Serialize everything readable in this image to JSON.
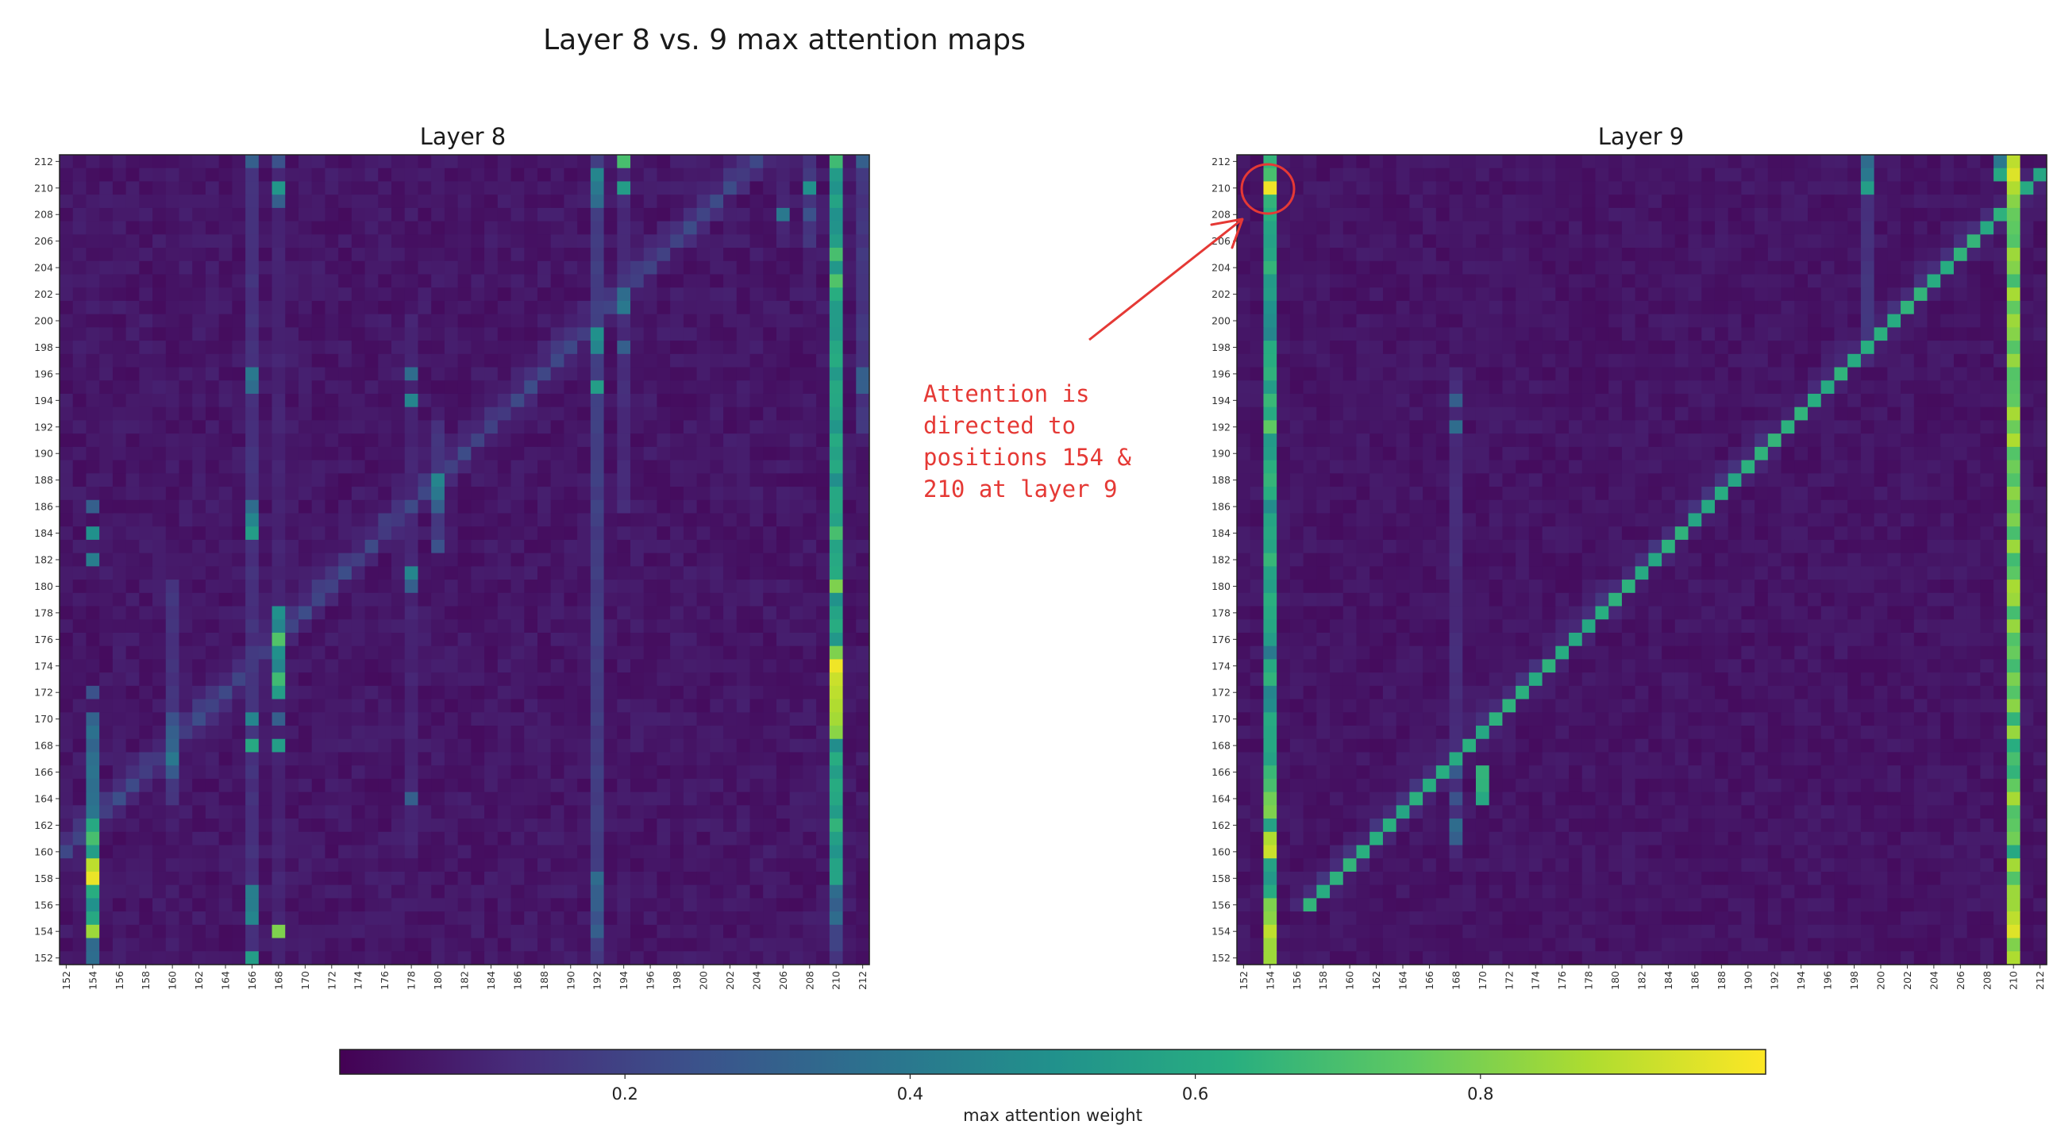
{
  "figure": {
    "title": "Layer 8 vs. 9 max attention maps"
  },
  "annotation": {
    "text": "Attention is\ndirected to\npositions 154 &\n210 at layer 9",
    "color": "#e53935"
  },
  "colormap": "viridis",
  "colorbar": {
    "label": "max attention weight",
    "range": [
      0.0,
      1.0
    ],
    "ticks": [
      0.2,
      0.4,
      0.6,
      0.8
    ],
    "tick_labels": [
      "0.2",
      "0.4",
      "0.6",
      "0.8"
    ]
  },
  "chart_data": [
    {
      "type": "heatmap",
      "title": "Layer 8",
      "xlabel": "",
      "ylabel": "",
      "positions": {
        "start": 152,
        "end": 212
      },
      "x_tick_labels": [
        "152",
        "154",
        "156",
        "158",
        "160",
        "162",
        "164",
        "166",
        "168",
        "170",
        "172",
        "174",
        "176",
        "178",
        "180",
        "182",
        "184",
        "186",
        "188",
        "190",
        "192",
        "194",
        "196",
        "198",
        "200",
        "202",
        "204",
        "206",
        "208",
        "210",
        "212"
      ],
      "y_tick_labels": [
        "212",
        "210",
        "208",
        "206",
        "204",
        "202",
        "200",
        "198",
        "196",
        "194",
        "192",
        "190",
        "188",
        "186",
        "184",
        "182",
        "180",
        "178",
        "176",
        "174",
        "172",
        "170",
        "168",
        "166",
        "164",
        "162",
        "160",
        "158",
        "156",
        "154",
        "152"
      ],
      "background_weight": 0.03,
      "columns": [
        {
          "key": 210,
          "row_from": 152,
          "row_to": 212,
          "value": 0.55,
          "overrides": [
            [
              174,
              0.98
            ],
            [
              173,
              0.92
            ],
            [
              172,
              0.9
            ],
            [
              171,
              0.88
            ],
            [
              170,
              0.86
            ],
            [
              180,
              0.8
            ],
            [
              175,
              0.8
            ],
            [
              169,
              0.82
            ],
            [
              205,
              0.7
            ],
            [
              203,
              0.72
            ],
            [
              202,
              0.62
            ],
            [
              184,
              0.7
            ],
            [
              162,
              0.65
            ],
            [
              212,
              0.68
            ],
            [
              157,
              0.35
            ],
            [
              156,
              0.3
            ],
            [
              155,
              0.35
            ],
            [
              154,
              0.2
            ],
            [
              153,
              0.2
            ],
            [
              152,
              0.15
            ]
          ]
        },
        {
          "key": 154,
          "row_from": 152,
          "row_to": 170,
          "value": 0.35,
          "overrides": [
            [
              158,
              0.97
            ],
            [
              159,
              0.9
            ],
            [
              154,
              0.85
            ],
            [
              161,
              0.7
            ],
            [
              162,
              0.6
            ],
            [
              160,
              0.55
            ],
            [
              155,
              0.6
            ],
            [
              156,
              0.5
            ],
            [
              157,
              0.62
            ],
            [
              184,
              0.5
            ],
            [
              182,
              0.42
            ],
            [
              186,
              0.3
            ],
            [
              172,
              0.25
            ]
          ]
        },
        {
          "key": 166,
          "row_from": 152,
          "row_to": 212,
          "value": 0.14,
          "overrides": [
            [
              152,
              0.55
            ],
            [
              155,
              0.45
            ],
            [
              156,
              0.42
            ],
            [
              157,
              0.42
            ],
            [
              168,
              0.6
            ],
            [
              170,
              0.45
            ],
            [
              184,
              0.55
            ],
            [
              185,
              0.45
            ],
            [
              186,
              0.35
            ],
            [
              196,
              0.4
            ],
            [
              195,
              0.35
            ],
            [
              212,
              0.3
            ]
          ]
        },
        {
          "key": 168,
          "row_from": 152,
          "row_to": 212,
          "value": 0.1,
          "overrides": [
            [
              154,
              0.8
            ],
            [
              173,
              0.68
            ],
            [
              176,
              0.72
            ],
            [
              175,
              0.5
            ],
            [
              178,
              0.5
            ],
            [
              177,
              0.45
            ],
            [
              172,
              0.55
            ],
            [
              168,
              0.55
            ],
            [
              174,
              0.45
            ],
            [
              210,
              0.52
            ],
            [
              209,
              0.3
            ],
            [
              212,
              0.25
            ],
            [
              170,
              0.3
            ]
          ]
        },
        {
          "key": 192,
          "row_from": 152,
          "row_to": 212,
          "value": 0.18,
          "overrides": [
            [
              199,
              0.5
            ],
            [
              198,
              0.45
            ],
            [
              195,
              0.55
            ],
            [
              211,
              0.45
            ],
            [
              210,
              0.4
            ],
            [
              158,
              0.35
            ],
            [
              157,
              0.3
            ],
            [
              156,
              0.3
            ],
            [
              155,
              0.25
            ],
            [
              154,
              0.3
            ],
            [
              209,
              0.35
            ]
          ]
        },
        {
          "key": 194,
          "row_from": 186,
          "row_to": 212,
          "value": 0.12,
          "overrides": [
            [
              212,
              0.7
            ],
            [
              210,
              0.55
            ],
            [
              202,
              0.35
            ],
            [
              201,
              0.4
            ],
            [
              198,
              0.3
            ]
          ]
        },
        {
          "key": 178,
          "row_from": 160,
          "row_to": 200,
          "value": 0.1,
          "overrides": [
            [
              194,
              0.45
            ],
            [
              196,
              0.35
            ],
            [
              164,
              0.3
            ],
            [
              181,
              0.45
            ],
            [
              180,
              0.3
            ]
          ]
        },
        {
          "key": 180,
          "row_from": 184,
          "row_to": 192,
          "value": 0.15,
          "overrides": [
            [
              188,
              0.45
            ],
            [
              187,
              0.4
            ],
            [
              186,
              0.3
            ],
            [
              183,
              0.25
            ]
          ]
        },
        {
          "key": 160,
          "row_from": 164,
          "row_to": 180,
          "value": 0.15,
          "overrides": [
            [
              167,
              0.4
            ],
            [
              168,
              0.32
            ],
            [
              169,
              0.3
            ],
            [
              166,
              0.28
            ],
            [
              170,
              0.25
            ]
          ]
        },
        {
          "key": 208,
          "row_from": 206,
          "row_to": 212,
          "value": 0.15,
          "overrides": [
            [
              210,
              0.5
            ],
            [
              208,
              0.25
            ]
          ]
        },
        {
          "key": 206,
          "row_from": 206,
          "row_to": 212,
          "value": 0.1,
          "overrides": [
            [
              208,
              0.4
            ]
          ]
        },
        {
          "key": 212,
          "row_from": 192,
          "row_to": 212,
          "value": 0.15,
          "overrides": [
            [
              195,
              0.3
            ],
            [
              196,
              0.3
            ],
            [
              212,
              0.3
            ]
          ]
        }
      ],
      "diagonal": {
        "from": 158,
        "to": 212,
        "offset": -8,
        "value": 0.2,
        "spread": 0.1
      },
      "noise": 0.06
    },
    {
      "type": "heatmap",
      "title": "Layer 9",
      "xlabel": "",
      "ylabel": "",
      "positions": {
        "start": 152,
        "end": 212
      },
      "x_tick_labels": [
        "152",
        "154",
        "156",
        "158",
        "160",
        "162",
        "164",
        "166",
        "168",
        "170",
        "172",
        "174",
        "176",
        "178",
        "180",
        "182",
        "184",
        "186",
        "188",
        "190",
        "192",
        "194",
        "196",
        "198",
        "200",
        "202",
        "204",
        "206",
        "208",
        "210",
        "212"
      ],
      "y_tick_labels": [
        "212",
        "210",
        "208",
        "206",
        "204",
        "202",
        "200",
        "198",
        "196",
        "194",
        "192",
        "190",
        "188",
        "186",
        "184",
        "182",
        "180",
        "178",
        "176",
        "174",
        "172",
        "170",
        "168",
        "166",
        "164",
        "162",
        "160",
        "158",
        "156",
        "154",
        "152"
      ],
      "background_weight": 0.03,
      "columns": [
        {
          "key": 154,
          "row_from": 152,
          "row_to": 212,
          "value": 0.6,
          "overrides": [
            [
              210,
              0.98
            ],
            [
              160,
              0.92
            ],
            [
              161,
              0.88
            ],
            [
              154,
              0.9
            ],
            [
              153,
              0.85
            ],
            [
              152,
              0.85
            ],
            [
              155,
              0.82
            ],
            [
              156,
              0.8
            ],
            [
              163,
              0.8
            ],
            [
              164,
              0.78
            ],
            [
              165,
              0.7
            ],
            [
              211,
              0.7
            ],
            [
              212,
              0.65
            ],
            [
              209,
              0.65
            ],
            [
              208,
              0.62
            ],
            [
              207,
              0.58
            ],
            [
              192,
              0.75
            ],
            [
              190,
              0.55
            ],
            [
              184,
              0.6
            ],
            [
              180,
              0.55
            ],
            [
              172,
              0.45
            ],
            [
              171,
              0.48
            ],
            [
              186,
              0.48
            ],
            [
              199,
              0.45
            ],
            [
              200,
              0.48
            ],
            [
              201,
              0.5
            ],
            [
              202,
              0.55
            ],
            [
              175,
              0.4
            ]
          ]
        },
        {
          "key": 210,
          "row_from": 152,
          "row_to": 212,
          "value": 0.78,
          "overrides": [
            [
              211,
              0.95
            ],
            [
              212,
              0.9
            ],
            [
              210,
              0.88
            ],
            [
              154,
              0.95
            ],
            [
              155,
              0.9
            ],
            [
              156,
              0.85
            ],
            [
              160,
              0.6
            ],
            [
              166,
              0.65
            ],
            [
              168,
              0.62
            ],
            [
              167,
              0.7
            ],
            [
              170,
              0.65
            ],
            [
              176,
              0.72
            ],
            [
              184,
              0.7
            ],
            [
              186,
              0.75
            ],
            [
              188,
              0.72
            ],
            [
              200,
              0.85
            ],
            [
              205,
              0.85
            ]
          ]
        },
        {
          "key": 199,
          "row_from": 198,
          "row_to": 212,
          "value": 0.15,
          "overrides": [
            [
              210,
              0.55
            ],
            [
              211,
              0.4
            ],
            [
              212,
              0.35
            ]
          ]
        },
        {
          "key": 168,
          "row_from": 160,
          "row_to": 196,
          "value": 0.12,
          "overrides": [
            [
              161,
              0.3
            ],
            [
              162,
              0.35
            ],
            [
              164,
              0.25
            ],
            [
              166,
              0.28
            ],
            [
              192,
              0.35
            ],
            [
              194,
              0.3
            ]
          ]
        },
        {
          "key": 170,
          "row_from": 164,
          "row_to": 166,
          "value": 0.6,
          "overrides": [
            [
              166,
              0.65
            ],
            [
              164,
              0.6
            ]
          ]
        },
        {
          "key": 209,
          "row_from": 211,
          "row_to": 212,
          "value": 0.6,
          "overrides": [
            [
              211,
              0.6
            ],
            [
              212,
              0.4
            ]
          ]
        }
      ],
      "diagonal": {
        "from": 156,
        "to": 211,
        "offset": 1,
        "value": 0.62,
        "spread": 0.08
      },
      "noise": 0.05
    }
  ]
}
